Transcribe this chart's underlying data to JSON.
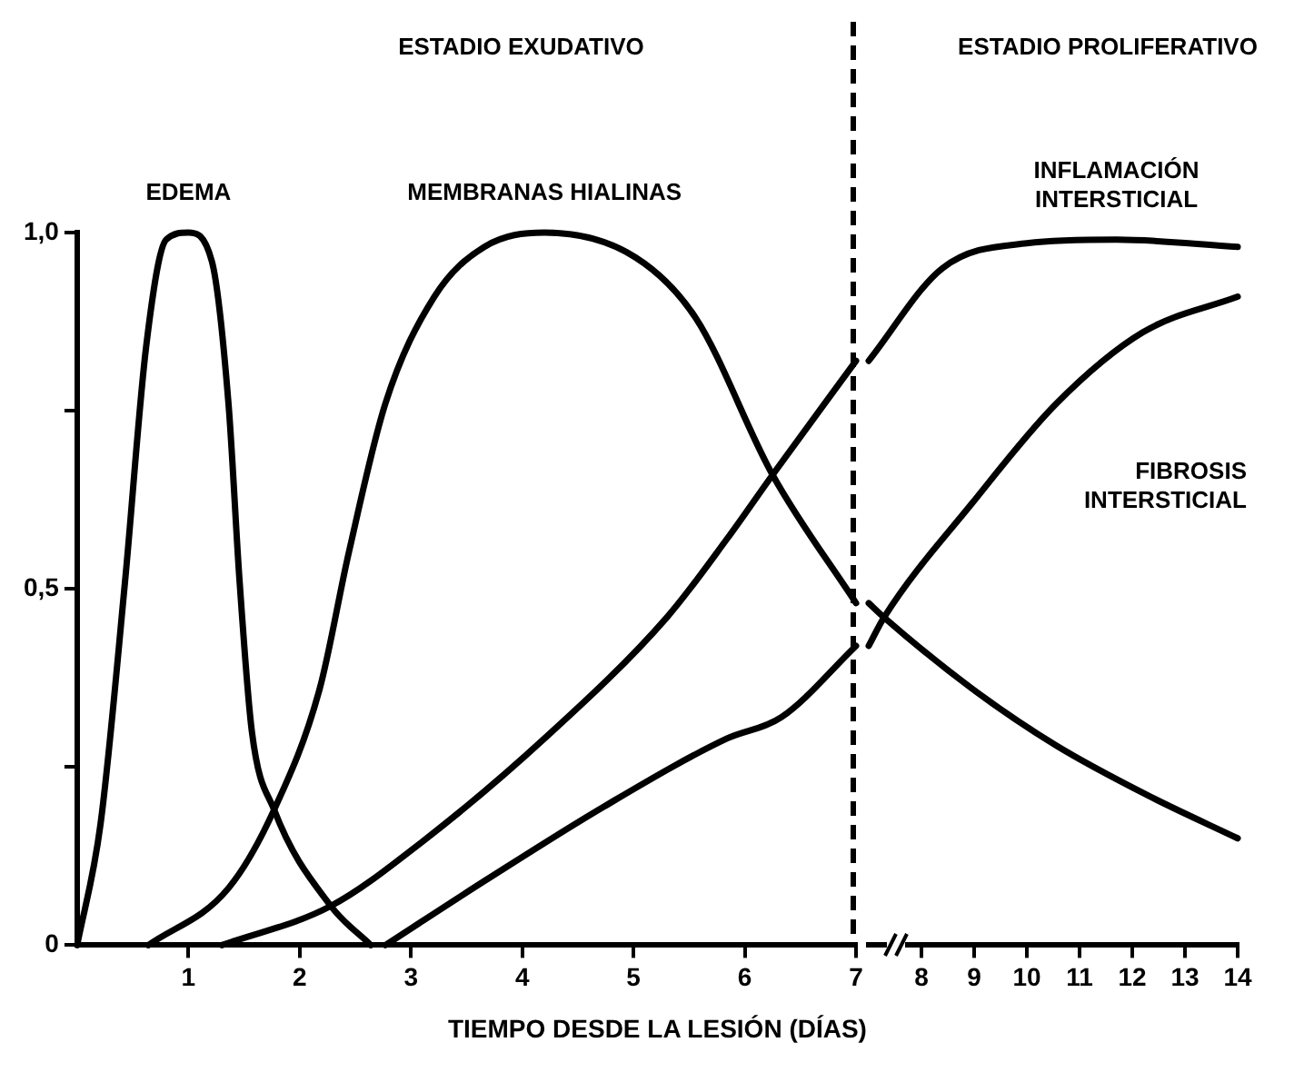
{
  "chart_data": [
    {
      "type": "line",
      "xlabel": "TIEMPO DESDE LA LESIÓN (DÍAS)",
      "xlim": [
        0,
        7
      ],
      "xticks": [
        1,
        2,
        3,
        4,
        5,
        6,
        7
      ],
      "ylim": [
        0,
        1
      ],
      "yticks": [
        0,
        {
          "value": 0.25,
          "label": null
        },
        {
          "value": 0.5,
          "label": "0,5"
        },
        {
          "value": 0.75,
          "label": null
        },
        {
          "value": 1,
          "label": "1,0"
        }
      ],
      "grid": false,
      "legend": false,
      "marker": "none",
      "line_style": "solid",
      "ref_lines": [
        {
          "axis": "x",
          "value": 7,
          "line_style": "dashed",
          "color": "#000000"
        }
      ],
      "annotations": [
        "ESTADIO EXUDATIVO"
      ],
      "series": [
        {
          "name": "EDEMA",
          "color": "#000000",
          "x": [
            0,
            0.21,
            0.43,
            0.62,
            0.8,
            1.0,
            1.21,
            1.36,
            1.46,
            1.57,
            1.77,
            2.28,
            2.64
          ],
          "values": [
            0,
            0.17,
            0.51,
            0.84,
            0.99,
            1.0,
            0.96,
            0.76,
            0.51,
            0.3,
            0.19,
            0.055,
            0
          ]
        },
        {
          "name": "MEMBRANAS HIALINAS",
          "color": "#000000",
          "x": [
            0.64,
            1.36,
            1.77,
            2.18,
            2.44,
            2.77,
            3.21,
            3.66,
            4.2,
            5.02,
            5.56,
            6.25,
            7
          ],
          "values": [
            0,
            0.08,
            0.19,
            0.36,
            0.55,
            0.76,
            0.91,
            0.98,
            1.0,
            0.965,
            0.88,
            0.66,
            0.48
          ]
        },
        {
          "color": "#000000",
          "x": [
            1.3,
            2.28,
            3.1,
            4.2,
            5.3,
            5.84,
            6.25,
            7
          ],
          "values": [
            0,
            0.055,
            0.145,
            0.29,
            0.46,
            0.57,
            0.66,
            0.82
          ]
        },
        {
          "color": "#000000",
          "x": [
            2.77,
            3.66,
            4.74,
            5.84,
            6.33,
            7
          ],
          "values": [
            0,
            0.09,
            0.195,
            0.29,
            0.32,
            0.42
          ]
        }
      ]
    },
    {
      "type": "line",
      "xlim": [
        7,
        14
      ],
      "xticks": [
        8,
        9,
        10,
        11,
        12,
        13,
        14
      ],
      "ylim": [
        0,
        1
      ],
      "tick_labels": "x",
      "grid": false,
      "legend": false,
      "marker": "none",
      "line_style": "solid",
      "annotations": [
        "ESTADIO PROLIFERATIVO"
      ],
      "series": [
        {
          "color": "#000000",
          "x": [
            7,
            7.29,
            8.96,
            10.56,
            12.3,
            14
          ],
          "values": [
            0.48,
            0.46,
            0.36,
            0.28,
            0.21,
            0.15
          ]
        },
        {
          "name": "INFLAMACIÓN INTERSTICIAL",
          "color": "#000000",
          "x": [
            7,
            8.4,
            10.0,
            11.7,
            14
          ],
          "values": [
            0.82,
            0.95,
            0.985,
            0.99,
            0.98
          ]
        },
        {
          "name": "FIBROSIS INTERSTICIAL",
          "color": "#000000",
          "x": [
            7,
            7.29,
            8.96,
            10.56,
            12.2,
            14
          ],
          "values": [
            0.42,
            0.46,
            0.62,
            0.76,
            0.86,
            0.91
          ]
        }
      ]
    }
  ]
}
